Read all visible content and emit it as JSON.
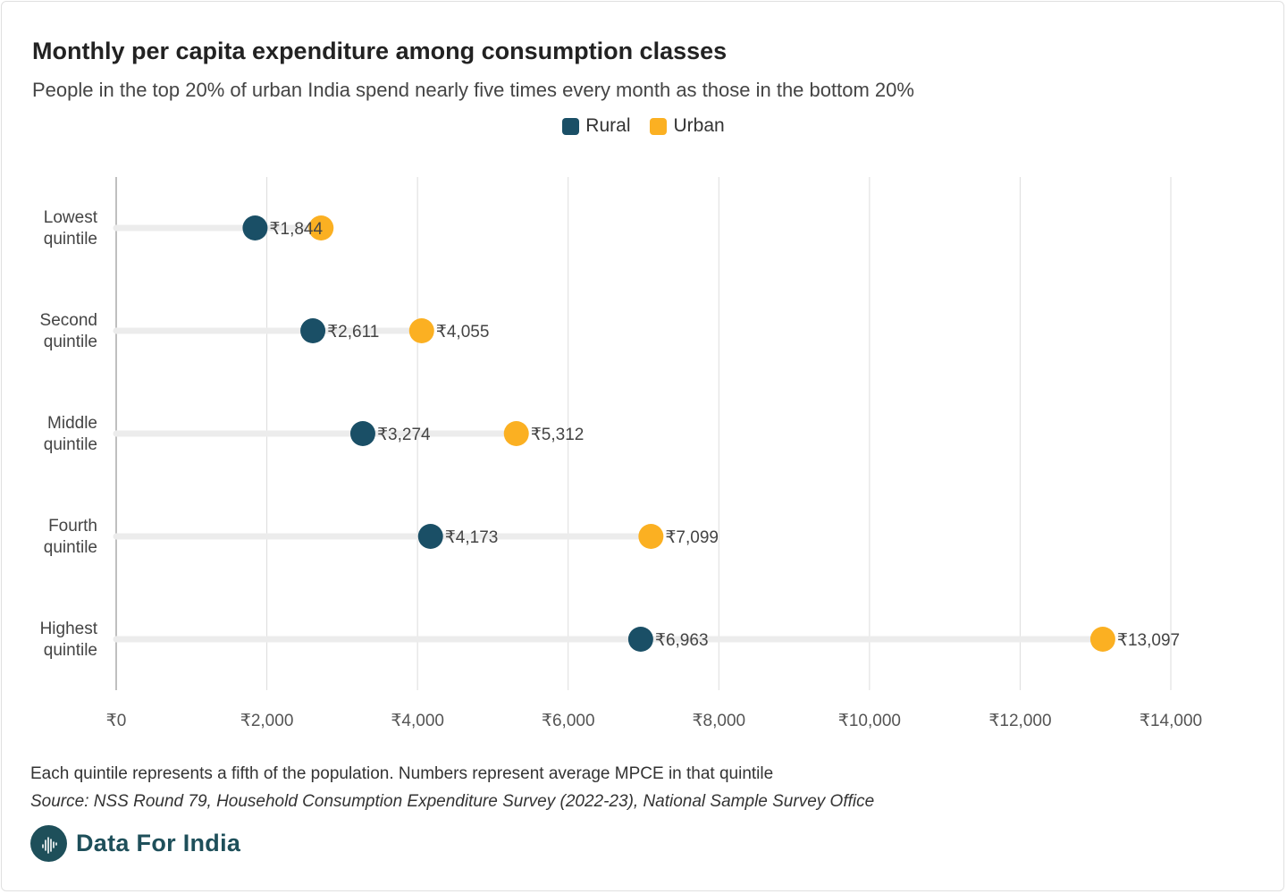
{
  "title": "Monthly per capita expenditure among consumption classes",
  "subtitle": "People in the top 20% of urban India spend nearly five times every month as those in the bottom 20%",
  "note": "Each quintile represents a fifth of the population. Numbers represent average MPCE in that quintile",
  "source": "Source: NSS Round 79, Household Consumption Expenditure Survey (2022-23), National Sample Survey Office",
  "brand": {
    "name": "Data For India",
    "logo_icon": "india-map-logo-icon"
  },
  "colors": {
    "rural": "#1a4f66",
    "urban": "#fbb022",
    "track": "#ececec",
    "grid": "#dddddd"
  },
  "chart_data": {
    "type": "dumbbell",
    "title": "Monthly per capita expenditure among consumption classes",
    "subtitle": "People in the top 20% of urban India spend nearly five times every month as those in the bottom 20%",
    "xlabel": "",
    "ylabel": "",
    "xlim": [
      0,
      14000
    ],
    "x_ticks": [
      0,
      2000,
      4000,
      6000,
      8000,
      10000,
      12000,
      14000
    ],
    "x_tick_labels": [
      "₹0",
      "₹2,000",
      "₹4,000",
      "₹6,000",
      "₹8,000",
      "₹10,000",
      "₹12,000",
      "₹14,000"
    ],
    "categories": [
      [
        "Lowest",
        "quintile"
      ],
      [
        "Second",
        "quintile"
      ],
      [
        "Middle",
        "quintile"
      ],
      [
        "Fourth",
        "quintile"
      ],
      [
        "Highest",
        "quintile"
      ]
    ],
    "series": [
      {
        "name": "Rural",
        "color": "#1a4f66",
        "values": [
          1844,
          2611,
          3274,
          4173,
          6963
        ],
        "labels": [
          "₹1,844",
          "₹2,611",
          "₹3,274",
          "₹4,173",
          "₹6,963"
        ]
      },
      {
        "name": "Urban",
        "color": "#fbb022",
        "values": [
          2720,
          4055,
          5312,
          7099,
          13097
        ],
        "labels": [
          "",
          "₹4,055",
          "₹5,312",
          "₹7,099",
          "₹13,097"
        ]
      }
    ],
    "legend": "top-center",
    "grid": true
  }
}
